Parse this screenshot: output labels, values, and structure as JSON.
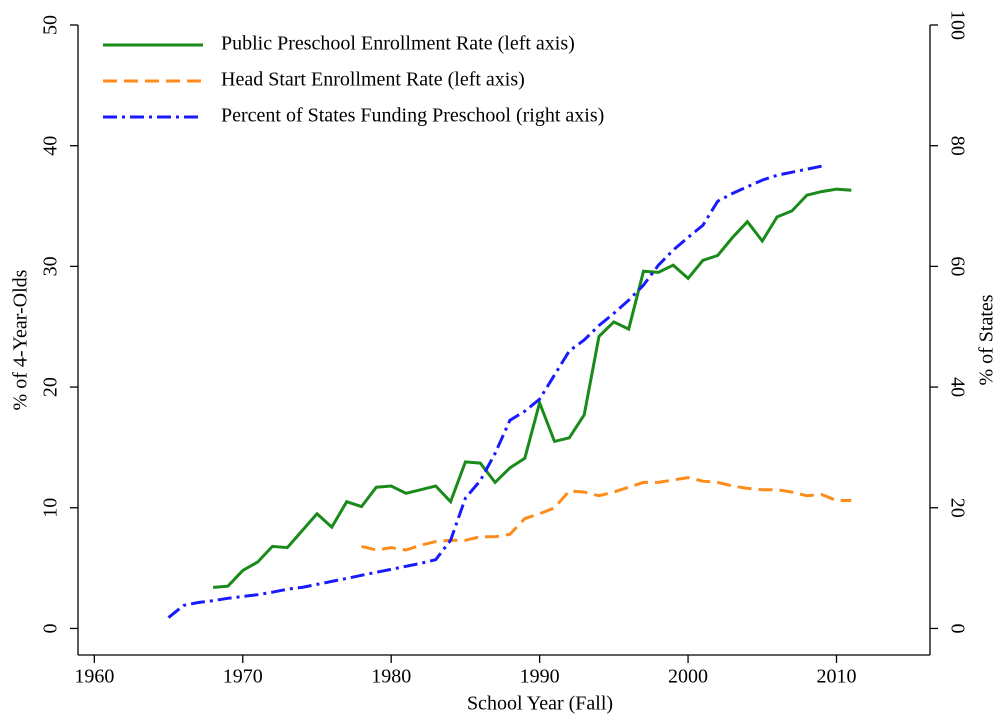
{
  "chart_data": {
    "type": "line",
    "xlabel": "School Year (Fall)",
    "ylabel": "% of 4-Year-Olds",
    "y2label": "% of States",
    "xlim": [
      1958.9,
      2016.3
    ],
    "xticks": [
      1960,
      1970,
      1980,
      1990,
      2000,
      2010
    ],
    "ylim": [
      -2.2,
      50
    ],
    "yticks": [
      0,
      10,
      20,
      30,
      40,
      50
    ],
    "y2lim": [
      -4.4,
      100
    ],
    "y2ticks": [
      0,
      20,
      40,
      60,
      80,
      100
    ],
    "legend": "top-left",
    "series": [
      {
        "name": "Public Preschool Enrollment Rate (left axis)",
        "color": "#1a8a1a",
        "style": "solid",
        "x": [
          1968,
          1969,
          1970,
          1971,
          1972,
          1973,
          1974,
          1975,
          1976,
          1977,
          1978,
          1979,
          1980,
          1981,
          1982,
          1983,
          1984,
          1985,
          1986,
          1987,
          1988,
          1989,
          1990,
          1991,
          1992,
          1993,
          1994,
          1995,
          1996,
          1997,
          1998,
          1999,
          2000,
          2001,
          2002,
          2003,
          2004,
          2005,
          2006,
          2007,
          2008,
          2009,
          2010,
          2011
        ],
        "values": [
          3.4,
          3.5,
          4.8,
          5.5,
          6.8,
          6.7,
          8.1,
          9.5,
          8.4,
          10.5,
          10.1,
          11.7,
          11.8,
          11.2,
          11.5,
          11.8,
          10.5,
          13.8,
          13.7,
          12.1,
          13.3,
          14.1,
          18.7,
          15.5,
          15.8,
          17.7,
          24.2,
          25.4,
          24.8,
          29.6,
          29.5,
          30.1,
          29.0,
          30.5,
          30.9,
          32.4,
          33.7,
          32.1,
          34.1,
          34.6,
          35.9,
          36.2,
          36.4,
          36.3
        ]
      },
      {
        "name": "Head Start Enrollment Rate (left axis)",
        "color": "#ff8c1a",
        "style": "dashed",
        "x": [
          1978,
          1979,
          1980,
          1981,
          1982,
          1983,
          1984,
          1985,
          1986,
          1987,
          1988,
          1989,
          1990,
          1991,
          1992,
          1993,
          1994,
          1995,
          1996,
          1997,
          1998,
          1999,
          2000,
          2001,
          2002,
          2003,
          2004,
          2005,
          2006,
          2007,
          2008,
          2009,
          2010,
          2011
        ],
        "values": [
          6.8,
          6.5,
          6.7,
          6.5,
          6.9,
          7.2,
          7.3,
          7.3,
          7.6,
          7.6,
          7.8,
          9.1,
          9.5,
          10.0,
          11.4,
          11.3,
          11.0,
          11.3,
          11.7,
          12.1,
          12.1,
          12.3,
          12.5,
          12.2,
          12.1,
          11.8,
          11.6,
          11.5,
          11.5,
          11.3,
          11.0,
          11.1,
          10.6,
          10.6
        ]
      },
      {
        "name": "Percent of States Funding Preschool (right axis)",
        "color": "#1a1aff",
        "style": "dashdot",
        "axis": "y2",
        "x": [
          1965,
          1966,
          1967,
          1968,
          1969,
          1970,
          1971,
          1972,
          1973,
          1974,
          1975,
          1976,
          1977,
          1978,
          1979,
          1980,
          1981,
          1982,
          1983,
          1984,
          1985,
          1986,
          1987,
          1988,
          1989,
          1990,
          1991,
          1992,
          1993,
          1994,
          1995,
          1996,
          1997,
          1998,
          1999,
          2000,
          2001,
          2002,
          2003,
          2004,
          2005,
          2006,
          2007,
          2008,
          2009
        ],
        "values": [
          1.8,
          3.8,
          4.3,
          4.6,
          5,
          5.3,
          5.6,
          6,
          6.5,
          6.8,
          7.3,
          7.8,
          8.3,
          8.8,
          9.3,
          9.8,
          10.3,
          10.8,
          11.4,
          14.6,
          21.6,
          24.5,
          29,
          34.5,
          36,
          38,
          42,
          46,
          47.8,
          50.2,
          52.2,
          54.4,
          56.9,
          60.2,
          62.7,
          64.8,
          66.8,
          70.8,
          72.1,
          73.2,
          74.3,
          75.1,
          75.6,
          76.1,
          76.6
        ]
      }
    ]
  }
}
